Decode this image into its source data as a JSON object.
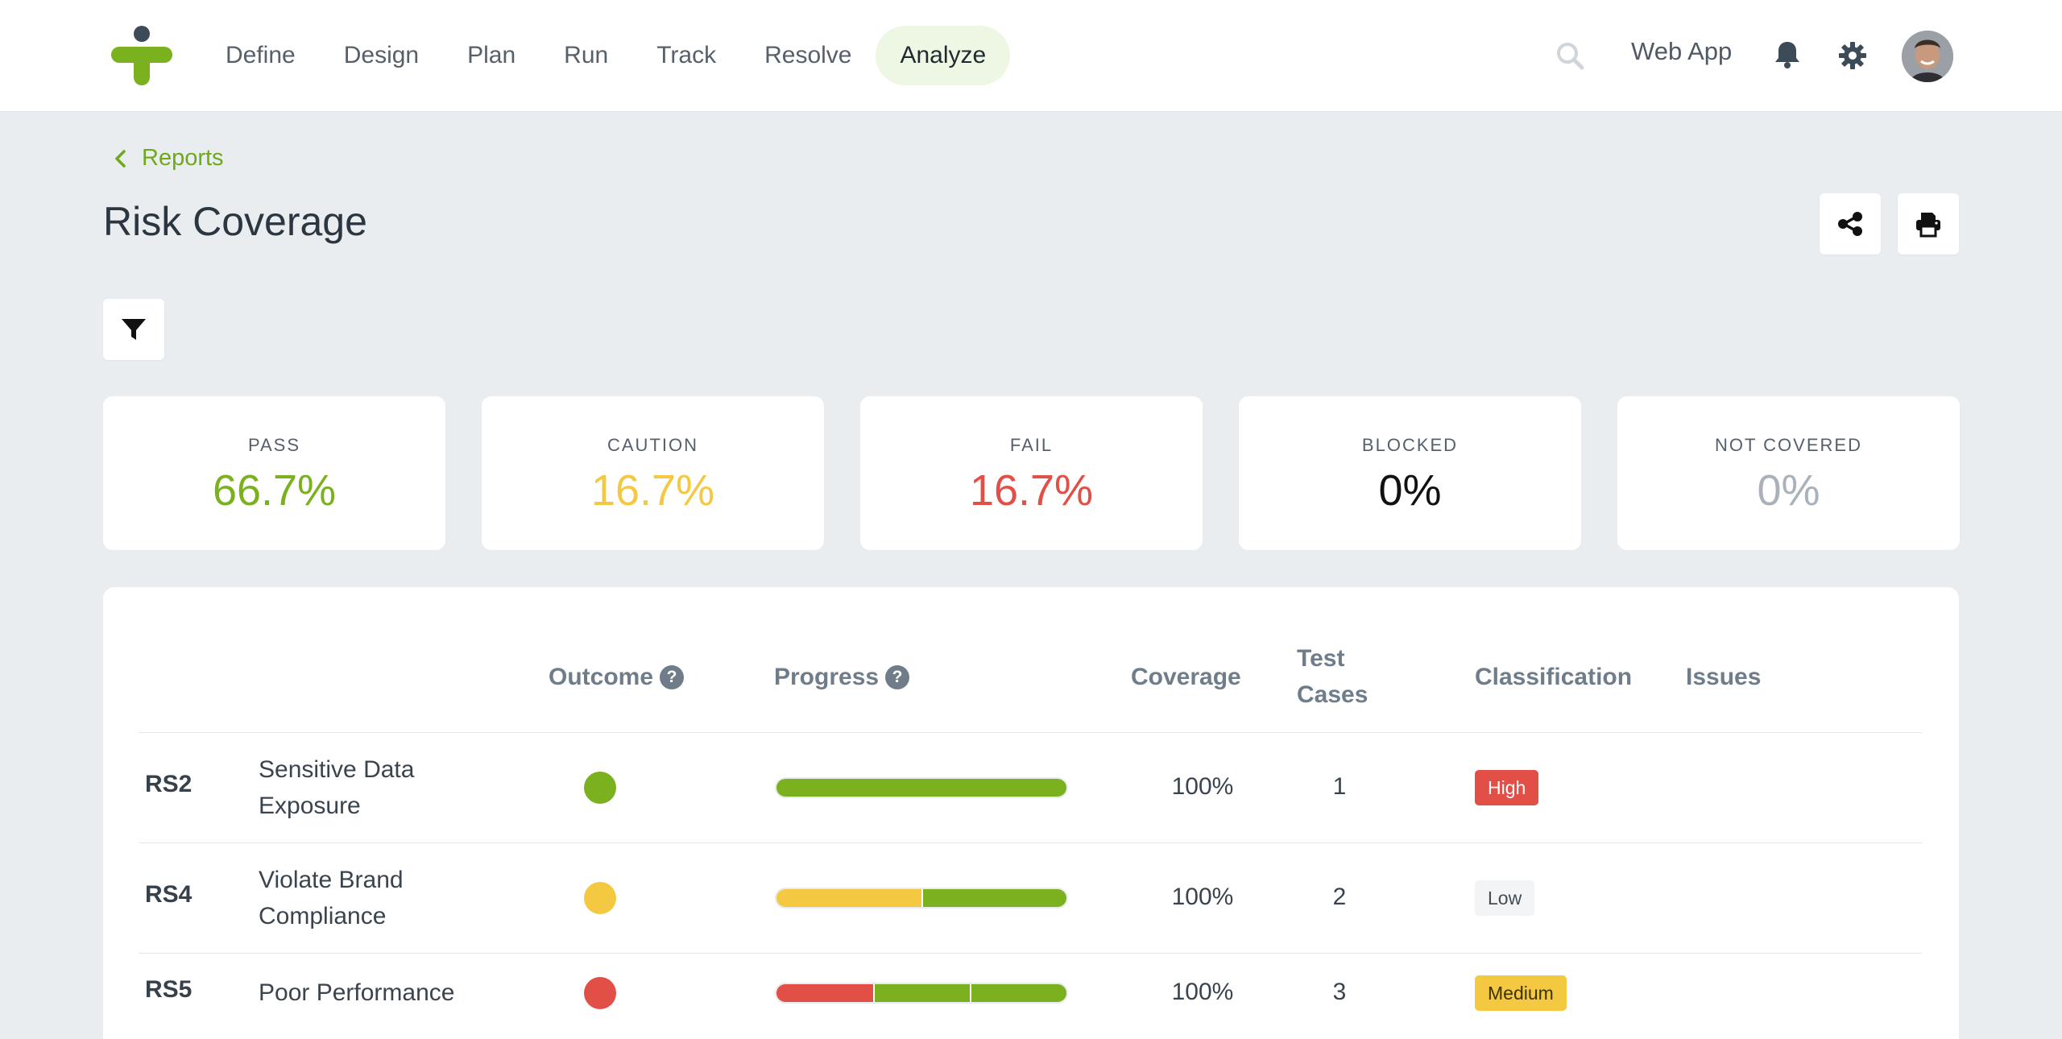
{
  "nav": {
    "items": [
      {
        "label": "Define"
      },
      {
        "label": "Design"
      },
      {
        "label": "Plan"
      },
      {
        "label": "Run"
      },
      {
        "label": "Track"
      },
      {
        "label": "Resolve"
      },
      {
        "label": "Analyze",
        "active": true
      }
    ]
  },
  "header": {
    "project_name": "Web App",
    "icons": [
      "search-icon",
      "bell-icon",
      "gear-icon",
      "avatar"
    ]
  },
  "breadcrumb": {
    "label": "Reports"
  },
  "page": {
    "title": "Risk Coverage"
  },
  "kpis": [
    {
      "label": "PASS",
      "value": "66.7%",
      "color": "#7bb01f"
    },
    {
      "label": "CAUTION",
      "value": "16.7%",
      "color": "#f5c842"
    },
    {
      "label": "FAIL",
      "value": "16.7%",
      "color": "#e14f47"
    },
    {
      "label": "BLOCKED",
      "value": "0%",
      "color": "#111111"
    },
    {
      "label": "NOT COVERED",
      "value": "0%",
      "color": "#a9b2ba"
    }
  ],
  "table": {
    "columns": {
      "outcome": "Outcome",
      "progress": "Progress",
      "coverage": "Coverage",
      "test_cases_line1": "Test",
      "test_cases_line2": "Cases",
      "classification": "Classification",
      "issues": "Issues"
    },
    "rows": [
      {
        "id": "RS2",
        "name_line1": "Sensitive Data",
        "name_line2": "Exposure",
        "outcome_color": "#7bb01f",
        "progress": [
          {
            "status": "pass",
            "fraction": 1.0,
            "color": "#7bb01f"
          }
        ],
        "coverage": "100%",
        "test_cases": "1",
        "classification": "High",
        "classification_bg": "#e14f47",
        "classification_fg": "#ffffff",
        "issues": ""
      },
      {
        "id": "RS4",
        "name_line1": "Violate Brand",
        "name_line2": "Compliance",
        "outcome_color": "#f5c842",
        "progress": [
          {
            "status": "caution",
            "fraction": 0.5,
            "color": "#f5c842"
          },
          {
            "status": "pass",
            "fraction": 0.5,
            "color": "#7bb01f"
          }
        ],
        "coverage": "100%",
        "test_cases": "2",
        "classification": "Low",
        "classification_bg": "#f3f4f5",
        "classification_fg": "#444c54",
        "issues": ""
      },
      {
        "id": "RS5",
        "name_line1": "Poor Performance",
        "name_line2": "",
        "outcome_color": "#e14f47",
        "progress": [
          {
            "status": "fail",
            "fraction": 0.3333,
            "color": "#e14f47"
          },
          {
            "status": "pass",
            "fraction": 0.3333,
            "color": "#7bb01f"
          },
          {
            "status": "pass",
            "fraction": 0.3334,
            "color": "#7bb01f"
          }
        ],
        "coverage": "100%",
        "test_cases": "3",
        "classification": "Medium",
        "classification_bg": "#f5c842",
        "classification_fg": "#3a3200",
        "issues": ""
      }
    ]
  }
}
